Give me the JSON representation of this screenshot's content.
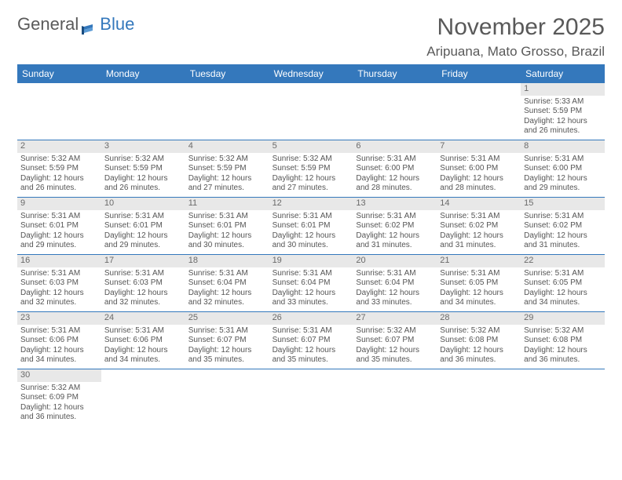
{
  "logo": {
    "text1": "General",
    "text2": "Blue"
  },
  "title": "November 2025",
  "location": "Aripuana, Mato Grosso, Brazil",
  "colors": {
    "header_bg": "#3478bc",
    "header_text": "#ffffff",
    "text": "#555555",
    "daynum_bg": "#e8e8e8",
    "border": "#3478bc"
  },
  "day_names": [
    "Sunday",
    "Monday",
    "Tuesday",
    "Wednesday",
    "Thursday",
    "Friday",
    "Saturday"
  ],
  "weeks": [
    [
      null,
      null,
      null,
      null,
      null,
      null,
      {
        "n": "1",
        "sr": "5:33 AM",
        "ss": "5:59 PM",
        "dl": "12 hours and 26 minutes."
      }
    ],
    [
      {
        "n": "2",
        "sr": "5:32 AM",
        "ss": "5:59 PM",
        "dl": "12 hours and 26 minutes."
      },
      {
        "n": "3",
        "sr": "5:32 AM",
        "ss": "5:59 PM",
        "dl": "12 hours and 26 minutes."
      },
      {
        "n": "4",
        "sr": "5:32 AM",
        "ss": "5:59 PM",
        "dl": "12 hours and 27 minutes."
      },
      {
        "n": "5",
        "sr": "5:32 AM",
        "ss": "5:59 PM",
        "dl": "12 hours and 27 minutes."
      },
      {
        "n": "6",
        "sr": "5:31 AM",
        "ss": "6:00 PM",
        "dl": "12 hours and 28 minutes."
      },
      {
        "n": "7",
        "sr": "5:31 AM",
        "ss": "6:00 PM",
        "dl": "12 hours and 28 minutes."
      },
      {
        "n": "8",
        "sr": "5:31 AM",
        "ss": "6:00 PM",
        "dl": "12 hours and 29 minutes."
      }
    ],
    [
      {
        "n": "9",
        "sr": "5:31 AM",
        "ss": "6:01 PM",
        "dl": "12 hours and 29 minutes."
      },
      {
        "n": "10",
        "sr": "5:31 AM",
        "ss": "6:01 PM",
        "dl": "12 hours and 29 minutes."
      },
      {
        "n": "11",
        "sr": "5:31 AM",
        "ss": "6:01 PM",
        "dl": "12 hours and 30 minutes."
      },
      {
        "n": "12",
        "sr": "5:31 AM",
        "ss": "6:01 PM",
        "dl": "12 hours and 30 minutes."
      },
      {
        "n": "13",
        "sr": "5:31 AM",
        "ss": "6:02 PM",
        "dl": "12 hours and 31 minutes."
      },
      {
        "n": "14",
        "sr": "5:31 AM",
        "ss": "6:02 PM",
        "dl": "12 hours and 31 minutes."
      },
      {
        "n": "15",
        "sr": "5:31 AM",
        "ss": "6:02 PM",
        "dl": "12 hours and 31 minutes."
      }
    ],
    [
      {
        "n": "16",
        "sr": "5:31 AM",
        "ss": "6:03 PM",
        "dl": "12 hours and 32 minutes."
      },
      {
        "n": "17",
        "sr": "5:31 AM",
        "ss": "6:03 PM",
        "dl": "12 hours and 32 minutes."
      },
      {
        "n": "18",
        "sr": "5:31 AM",
        "ss": "6:04 PM",
        "dl": "12 hours and 32 minutes."
      },
      {
        "n": "19",
        "sr": "5:31 AM",
        "ss": "6:04 PM",
        "dl": "12 hours and 33 minutes."
      },
      {
        "n": "20",
        "sr": "5:31 AM",
        "ss": "6:04 PM",
        "dl": "12 hours and 33 minutes."
      },
      {
        "n": "21",
        "sr": "5:31 AM",
        "ss": "6:05 PM",
        "dl": "12 hours and 34 minutes."
      },
      {
        "n": "22",
        "sr": "5:31 AM",
        "ss": "6:05 PM",
        "dl": "12 hours and 34 minutes."
      }
    ],
    [
      {
        "n": "23",
        "sr": "5:31 AM",
        "ss": "6:06 PM",
        "dl": "12 hours and 34 minutes."
      },
      {
        "n": "24",
        "sr": "5:31 AM",
        "ss": "6:06 PM",
        "dl": "12 hours and 34 minutes."
      },
      {
        "n": "25",
        "sr": "5:31 AM",
        "ss": "6:07 PM",
        "dl": "12 hours and 35 minutes."
      },
      {
        "n": "26",
        "sr": "5:31 AM",
        "ss": "6:07 PM",
        "dl": "12 hours and 35 minutes."
      },
      {
        "n": "27",
        "sr": "5:32 AM",
        "ss": "6:07 PM",
        "dl": "12 hours and 35 minutes."
      },
      {
        "n": "28",
        "sr": "5:32 AM",
        "ss": "6:08 PM",
        "dl": "12 hours and 36 minutes."
      },
      {
        "n": "29",
        "sr": "5:32 AM",
        "ss": "6:08 PM",
        "dl": "12 hours and 36 minutes."
      }
    ],
    [
      {
        "n": "30",
        "sr": "5:32 AM",
        "ss": "6:09 PM",
        "dl": "12 hours and 36 minutes."
      },
      null,
      null,
      null,
      null,
      null,
      null
    ]
  ],
  "labels": {
    "sunrise": "Sunrise: ",
    "sunset": "Sunset: ",
    "daylight": "Daylight: "
  }
}
